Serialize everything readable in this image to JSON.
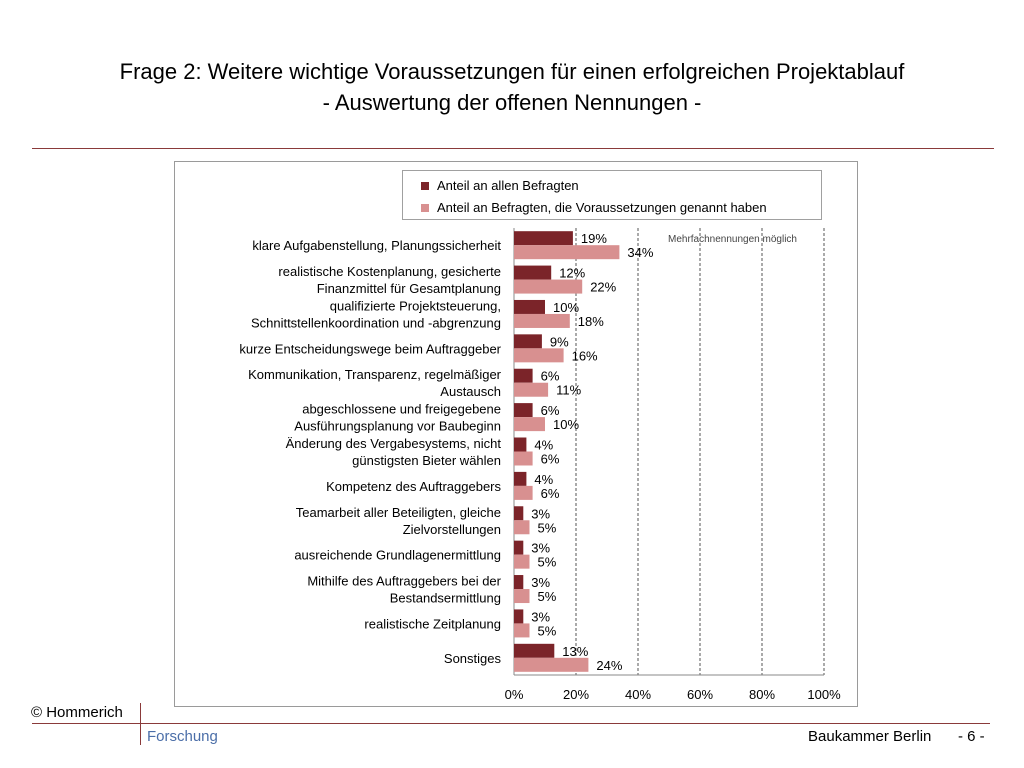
{
  "slide": {
    "title_line1": "Frage 2: Weitere wichtige  Voraussetzungen für einen erfolgreichen Projektablauf",
    "title_line2": "- Auswertung der offenen Nennungen -",
    "note": "Mehrfachnennungen möglich",
    "footer": {
      "copyright": "© Hommerich",
      "subtitle": "Forschung",
      "org": "Baukammer Berlin",
      "page": "- 6 -"
    }
  },
  "colors": {
    "series1": "#7b2429",
    "series2": "#d89090",
    "rule": "#8a3a3a",
    "forschung": "#4b6ea8"
  },
  "chart_data": {
    "type": "bar",
    "orientation": "horizontal",
    "categories": [
      [
        "klare Aufgabenstellung, Planungssicherheit"
      ],
      [
        "realistische Kostenplanung, gesicherte",
        "Finanzmittel für Gesamtplanung"
      ],
      [
        "qualifizierte Projektsteuerung,",
        "Schnittstellenkoordination und -abgrenzung"
      ],
      [
        "kurze Entscheidungswege beim Auftraggeber"
      ],
      [
        "Kommunikation, Transparenz, regelmäßiger",
        "Austausch"
      ],
      [
        "abgeschlossene und freigegebene",
        "Ausführungsplanung  vor Baubeginn"
      ],
      [
        "Änderung  des Vergabesystems, nicht",
        "günstigsten Bieter wählen"
      ],
      [
        "Kompetenz des Auftraggebers"
      ],
      [
        "Teamarbeit aller Beteiligten, gleiche",
        "Zielvorstellungen"
      ],
      [
        "ausreichende Grundlagenermittlung"
      ],
      [
        "Mithilfe des Auftraggebers bei der",
        "Bestandsermittlung"
      ],
      [
        "realistische Zeitplanung"
      ],
      [
        "Sonstiges"
      ]
    ],
    "series": [
      {
        "name": "Anteil an allen Befragten",
        "values": [
          19,
          12,
          10,
          9,
          6,
          6,
          4,
          4,
          3,
          3,
          3,
          3,
          13
        ]
      },
      {
        "name": "Anteil an Befragten, die Voraussetzungen genannt haben",
        "values": [
          34,
          22,
          18,
          16,
          11,
          10,
          6,
          6,
          5,
          5,
          5,
          5,
          24
        ]
      }
    ],
    "xlim": [
      0,
      100
    ],
    "xticks": [
      "0%",
      "20%",
      "40%",
      "60%",
      "80%",
      "100%"
    ],
    "grid": "dashed vertical",
    "legend_position": "top"
  }
}
